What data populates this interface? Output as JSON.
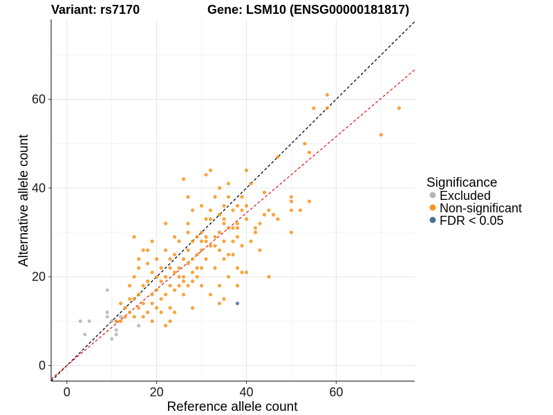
{
  "title_left": "Variant: rs7170",
  "title_right": "Gene: LSM10 (ENSG00000181817)",
  "chart_data": {
    "type": "scatter",
    "xlabel": "Reference allele count",
    "ylabel": "Alternative allele count",
    "xlim": [
      -3.5,
      77.5
    ],
    "ylim": [
      -3.5,
      78
    ],
    "xticks": [
      0,
      20,
      40,
      60
    ],
    "yticks": [
      0,
      20,
      40,
      60
    ],
    "grid": true,
    "reference_lines": [
      {
        "name": "y = x",
        "slope": 1.0,
        "color": "#000000",
        "style": "dashed"
      },
      {
        "name": "fitted",
        "slope": 0.86,
        "color": "#e8191d",
        "style": "dashed"
      }
    ],
    "legend": {
      "title": "Significance",
      "placement": "right",
      "entries": [
        "Excluded",
        "Non-significant",
        "FDR < 0.05"
      ]
    },
    "series": [
      {
        "name": "Excluded",
        "color": "#b5b5b5",
        "points": [
          [
            3,
            10
          ],
          [
            4,
            7
          ],
          [
            5,
            10
          ],
          [
            9,
            17
          ],
          [
            9,
            12
          ],
          [
            9,
            11
          ],
          [
            10,
            10
          ],
          [
            10,
            6
          ],
          [
            11,
            8
          ],
          [
            11,
            7
          ],
          [
            16,
            9
          ],
          [
            11,
            10
          ],
          [
            12,
            11
          ]
        ]
      },
      {
        "name": "Non-significant",
        "color": "#f7941d",
        "points": [
          [
            11,
            10
          ],
          [
            12,
            10
          ],
          [
            12,
            14
          ],
          [
            13,
            11
          ],
          [
            13,
            13
          ],
          [
            14,
            12
          ],
          [
            14,
            15
          ],
          [
            14,
            18
          ],
          [
            15,
            15
          ],
          [
            15,
            11
          ],
          [
            15,
            20
          ],
          [
            15,
            29
          ],
          [
            16,
            13
          ],
          [
            16,
            16
          ],
          [
            16,
            22
          ],
          [
            16,
            24
          ],
          [
            17,
            14
          ],
          [
            17,
            18
          ],
          [
            17,
            26
          ],
          [
            17,
            11
          ],
          [
            18,
            12
          ],
          [
            18,
            19
          ],
          [
            18,
            23
          ],
          [
            18,
            26
          ],
          [
            19,
            14
          ],
          [
            19,
            16
          ],
          [
            19,
            21
          ],
          [
            19,
            28
          ],
          [
            19,
            10
          ],
          [
            20,
            13
          ],
          [
            20,
            17
          ],
          [
            20,
            20
          ],
          [
            20,
            24
          ],
          [
            21,
            15
          ],
          [
            21,
            19
          ],
          [
            21,
            22
          ],
          [
            21,
            12
          ],
          [
            22,
            16
          ],
          [
            22,
            20
          ],
          [
            22,
            26
          ],
          [
            22,
            32
          ],
          [
            22,
            9
          ],
          [
            23,
            13
          ],
          [
            23,
            18
          ],
          [
            23,
            22
          ],
          [
            23,
            24
          ],
          [
            23,
            10
          ],
          [
            24,
            17
          ],
          [
            24,
            21
          ],
          [
            24,
            25
          ],
          [
            24,
            29
          ],
          [
            24,
            12
          ],
          [
            25,
            18
          ],
          [
            25,
            22
          ],
          [
            25,
            28
          ],
          [
            25,
            20
          ],
          [
            26,
            16
          ],
          [
            26,
            20
          ],
          [
            26,
            24
          ],
          [
            26,
            42
          ],
          [
            26,
            19
          ],
          [
            27,
            18
          ],
          [
            27,
            23
          ],
          [
            27,
            26
          ],
          [
            27,
            32
          ],
          [
            27,
            38
          ],
          [
            27,
            30
          ],
          [
            28,
            19
          ],
          [
            28,
            24
          ],
          [
            28,
            28
          ],
          [
            28,
            35
          ],
          [
            28,
            13
          ],
          [
            28,
            21
          ],
          [
            29,
            20
          ],
          [
            29,
            25
          ],
          [
            29,
            29
          ],
          [
            29,
            22
          ],
          [
            30,
            22
          ],
          [
            30,
            26
          ],
          [
            30,
            30
          ],
          [
            30,
            36
          ],
          [
            30,
            18
          ],
          [
            30,
            28
          ],
          [
            31,
            24
          ],
          [
            31,
            28
          ],
          [
            31,
            33
          ],
          [
            31,
            43
          ],
          [
            31,
            29
          ],
          [
            32,
            16
          ],
          [
            32,
            27
          ],
          [
            32,
            35
          ],
          [
            32,
            44
          ],
          [
            32,
            33
          ],
          [
            33,
            22
          ],
          [
            33,
            29
          ],
          [
            33,
            38
          ],
          [
            33,
            27
          ],
          [
            34,
            18
          ],
          [
            34,
            26
          ],
          [
            34,
            30
          ],
          [
            34,
            34
          ],
          [
            34,
            40
          ],
          [
            34,
            14
          ],
          [
            35,
            15
          ],
          [
            35,
            24
          ],
          [
            35,
            32
          ],
          [
            35,
            36
          ],
          [
            35,
            28
          ],
          [
            35,
            33
          ],
          [
            36,
            20
          ],
          [
            36,
            25
          ],
          [
            36,
            31
          ],
          [
            36,
            38
          ],
          [
            36,
            41
          ],
          [
            37,
            25
          ],
          [
            37,
            31
          ],
          [
            37,
            35
          ],
          [
            37,
            28
          ],
          [
            38,
            18
          ],
          [
            38,
            22
          ],
          [
            38,
            31
          ],
          [
            38,
            36
          ],
          [
            38,
            29
          ],
          [
            38,
            32
          ],
          [
            39,
            21
          ],
          [
            39,
            27
          ],
          [
            39,
            35
          ],
          [
            39,
            38
          ],
          [
            40,
            21
          ],
          [
            40,
            33
          ],
          [
            40,
            36
          ],
          [
            40,
            44
          ],
          [
            41,
            28
          ],
          [
            41,
            41
          ],
          [
            42,
            31
          ],
          [
            42,
            30
          ],
          [
            43,
            26
          ],
          [
            43,
            32
          ],
          [
            44,
            34
          ],
          [
            44,
            39
          ],
          [
            45,
            20
          ],
          [
            45,
            35
          ],
          [
            46,
            34
          ],
          [
            47,
            33
          ],
          [
            47,
            47
          ],
          [
            50,
            30
          ],
          [
            50,
            35
          ],
          [
            50,
            38
          ],
          [
            50,
            37
          ],
          [
            52,
            35
          ],
          [
            53,
            50
          ],
          [
            54,
            48
          ],
          [
            54,
            37
          ],
          [
            55,
            58
          ],
          [
            58,
            61
          ],
          [
            58,
            58
          ],
          [
            70,
            52
          ],
          [
            74,
            58
          ]
        ]
      },
      {
        "name": "FDR < 0.05",
        "color": "#4a6f97",
        "points": [
          [
            38,
            14
          ]
        ]
      }
    ]
  }
}
